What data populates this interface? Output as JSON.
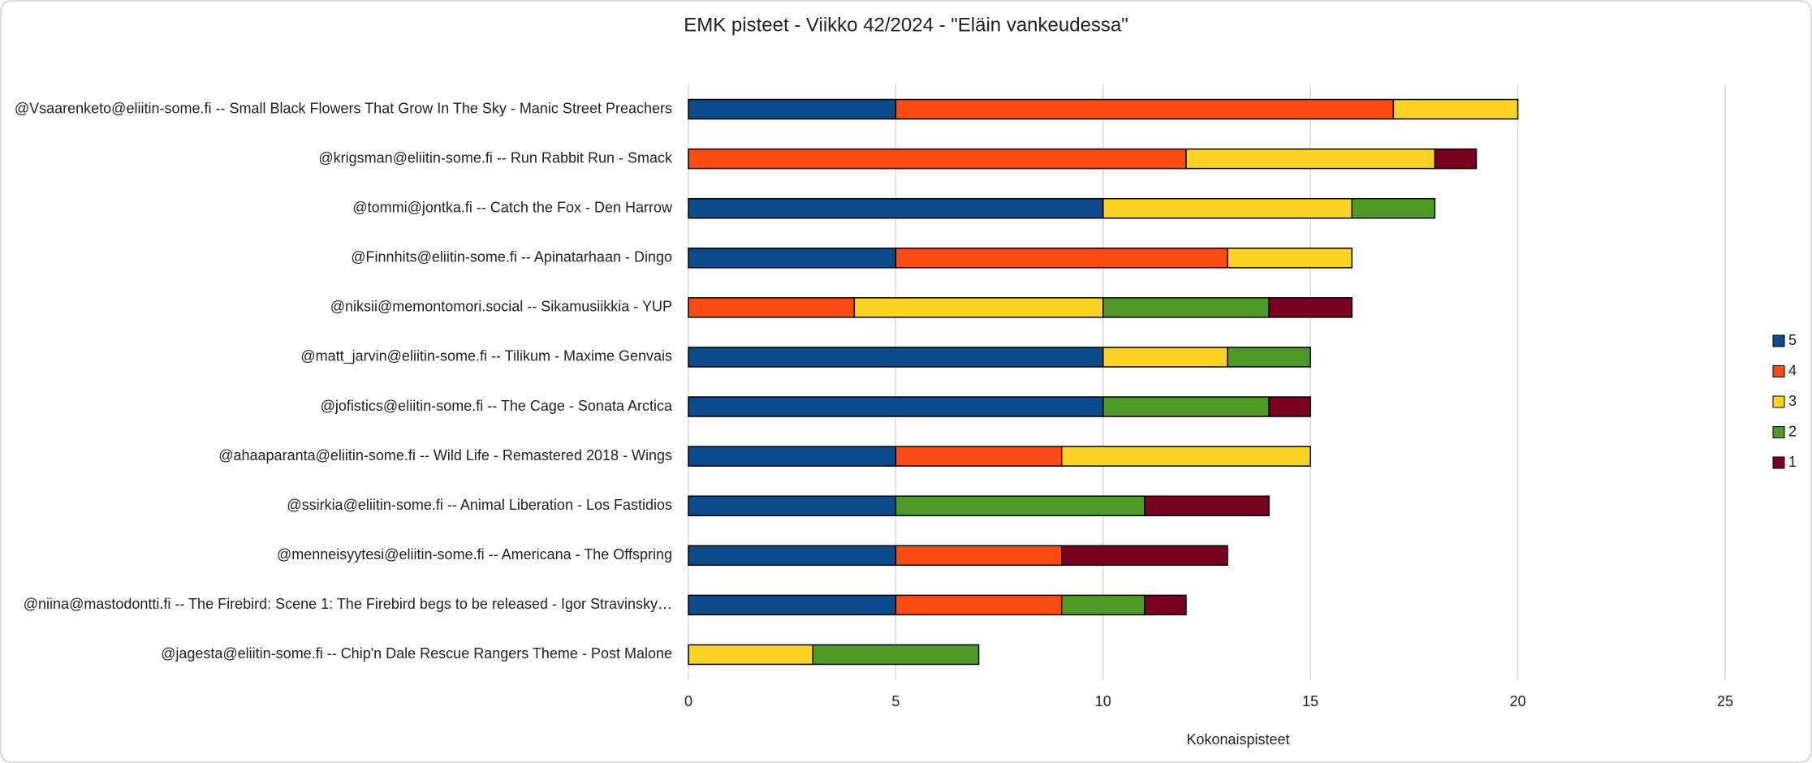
{
  "chart_data": {
    "type": "stacked-bar-horizontal",
    "title": "EMK pisteet - Viikko 42/2024 - \"Eläin vankeudessa\"",
    "x_label": "Kokonaispisteet",
    "categories": [
      "@Vsaarenketo@eliitin-some.fi -- Small Black Flowers That Grow In The Sky - Manic Street Preachers",
      "@krigsman@eliitin-some.fi -- Run Rabbit Run - Smack",
      "@tommi@jontka.fi -- Catch the Fox - Den Harrow",
      "@Finnhits@eliitin-some.fi -- Apinatarhaan - Dingo",
      "@niksii@memontomori.social -- Sikamusiikkia - YUP",
      "@matt_jarvin@eliitin-some.fi -- Tilikum - Maxime Genvais",
      "@jofistics@eliitin-some.fi -- The Cage - Sonata Arctica",
      "@ahaaparanta@eliitin-some.fi -- Wild Life - Remastered 2018 - Wings",
      "@ssirkia@eliitin-some.fi -- Animal Liberation - Los Fastidios",
      "@menneisyytesi@eliitin-some.fi -- Americana - The Offspring",
      "@niina@mastodontti.fi -- The Firebird: Scene 1: The Firebird begs to be released - Igor Stravinsky…",
      "@jagesta@eliitin-some.fi -- Chip'n Dale Rescue Rangers Theme - Post Malone"
    ],
    "series": [
      {
        "name": "5",
        "color": "#0b4a8b",
        "values": [
          5,
          0,
          10,
          5,
          0,
          10,
          10,
          5,
          5,
          5,
          5,
          0
        ]
      },
      {
        "name": "4",
        "color": "#fb4b12",
        "values": [
          12,
          12,
          0,
          8,
          4,
          0,
          0,
          4,
          0,
          4,
          4,
          0
        ]
      },
      {
        "name": "3",
        "color": "#fdd323",
        "values": [
          3,
          6,
          6,
          3,
          6,
          3,
          0,
          6,
          0,
          0,
          0,
          3
        ]
      },
      {
        "name": "2",
        "color": "#4f9a26",
        "values": [
          0,
          0,
          2,
          0,
          4,
          2,
          4,
          0,
          6,
          0,
          2,
          4
        ]
      },
      {
        "name": "1",
        "color": "#7a0020",
        "values": [
          0,
          1,
          0,
          0,
          2,
          0,
          1,
          0,
          3,
          4,
          1,
          0
        ]
      }
    ],
    "xlim": [
      0,
      25
    ],
    "xticks": [
      0,
      5,
      10,
      15,
      20,
      25
    ],
    "grid": true,
    "legend": "right"
  }
}
